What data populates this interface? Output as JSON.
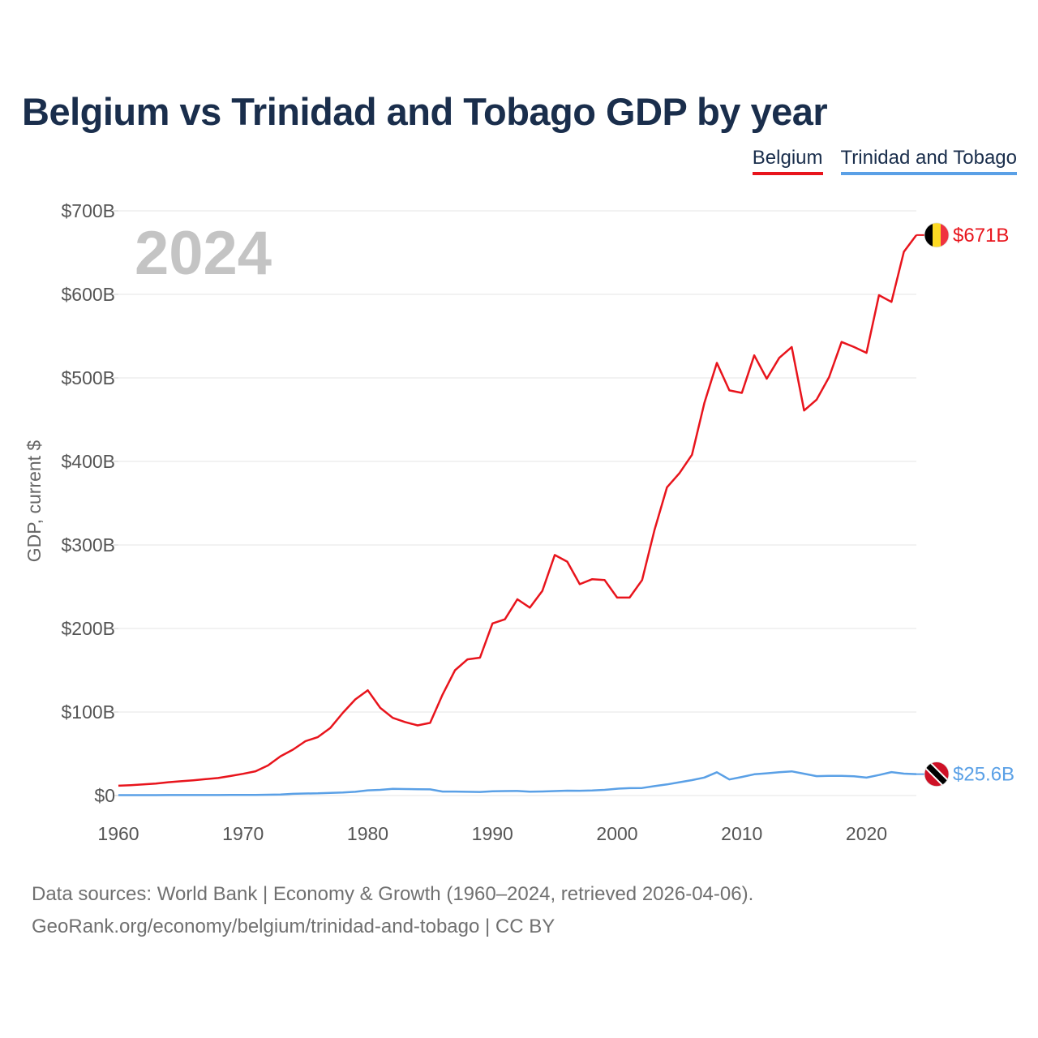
{
  "title": "Belgium vs Trinidad and Tobago GDP by year",
  "legend": {
    "series_a": "Belgium",
    "series_b": "Trinidad and Tobago"
  },
  "footer": {
    "line1": "Data sources: World Bank | Economy & Growth (1960–2024, retrieved 2026-04-06).",
    "line2": "GeoRank.org/economy/belgium/trinidad-and-tobago | CC BY"
  },
  "chart_data": {
    "type": "line",
    "title": "Belgium vs Trinidad and Tobago GDP by year",
    "xlabel": "",
    "ylabel": "GDP, current $",
    "current_year_label": "2024",
    "xlim": [
      1960,
      2024
    ],
    "ylim": [
      0,
      700
    ],
    "unit": "billion current US$",
    "x_ticks": [
      1960,
      1970,
      1980,
      1990,
      2000,
      2010,
      2020
    ],
    "x_tick_labels": [
      "1960",
      "1970",
      "1980",
      "1990",
      "2000",
      "2010",
      "2020"
    ],
    "y_ticks": [
      0,
      100,
      200,
      300,
      400,
      500,
      600,
      700
    ],
    "y_tick_labels": [
      "$0",
      "$100B",
      "$200B",
      "$300B",
      "$400B",
      "$500B",
      "$600B",
      "$700B"
    ],
    "grid": true,
    "legend_position": "top-right",
    "x": [
      1960,
      1961,
      1962,
      1963,
      1964,
      1965,
      1966,
      1967,
      1968,
      1969,
      1970,
      1971,
      1972,
      1973,
      1974,
      1975,
      1976,
      1977,
      1978,
      1979,
      1980,
      1981,
      1982,
      1983,
      1984,
      1985,
      1986,
      1987,
      1988,
      1989,
      1990,
      1991,
      1992,
      1993,
      1994,
      1995,
      1996,
      1997,
      1998,
      1999,
      2000,
      2001,
      2002,
      2003,
      2004,
      2005,
      2006,
      2007,
      2008,
      2009,
      2010,
      2011,
      2012,
      2013,
      2014,
      2015,
      2016,
      2017,
      2018,
      2019,
      2020,
      2021,
      2022,
      2023,
      2024
    ],
    "series": [
      {
        "name": "Belgium",
        "color": "#e8141c",
        "end_label": "$671B",
        "flag": "belgium-flag",
        "values": [
          11.7,
          12.4,
          13.3,
          14.3,
          15.9,
          17.1,
          18.3,
          19.6,
          21.0,
          23.4,
          26.0,
          29.0,
          36.0,
          47.0,
          55.0,
          65.0,
          70.0,
          81.0,
          99.0,
          115.0,
          126.0,
          105.0,
          93.0,
          88.0,
          84.0,
          87.0,
          121.0,
          150.0,
          163.0,
          165.0,
          206.0,
          211.0,
          235.0,
          225.0,
          245.0,
          288.0,
          280.0,
          253.0,
          259.0,
          258.0,
          237.0,
          237.0,
          258.0,
          318.0,
          369.0,
          386.0,
          408.0,
          470.0,
          518.0,
          485.0,
          482.0,
          527.0,
          499.0,
          524.0,
          537.0,
          461.0,
          474.0,
          501.0,
          543.0,
          537.0,
          530.0,
          599.0,
          591.0,
          651.0,
          671.0
        ]
      },
      {
        "name": "Trinidad and Tobago",
        "color": "#5aa0e6",
        "end_label": "$25.6B",
        "flag": "trinidad-and-tobago-flag",
        "values": [
          0.5,
          0.5,
          0.5,
          0.5,
          0.6,
          0.6,
          0.6,
          0.6,
          0.6,
          0.7,
          0.8,
          0.8,
          1.0,
          1.2,
          2.0,
          2.4,
          2.6,
          3.2,
          3.6,
          4.5,
          6.2,
          6.8,
          8.0,
          7.8,
          7.6,
          7.4,
          4.8,
          4.8,
          4.5,
          4.3,
          5.1,
          5.3,
          5.4,
          4.7,
          4.9,
          5.3,
          5.8,
          5.7,
          6.0,
          6.8,
          8.2,
          8.8,
          9.0,
          11.3,
          13.3,
          15.9,
          18.4,
          21.6,
          27.9,
          19.2,
          22.2,
          25.4,
          26.6,
          28.0,
          28.9,
          26.1,
          23.2,
          23.6,
          23.5,
          23.1,
          21.5,
          24.6,
          28.1,
          26.2,
          25.6
        ]
      }
    ]
  }
}
